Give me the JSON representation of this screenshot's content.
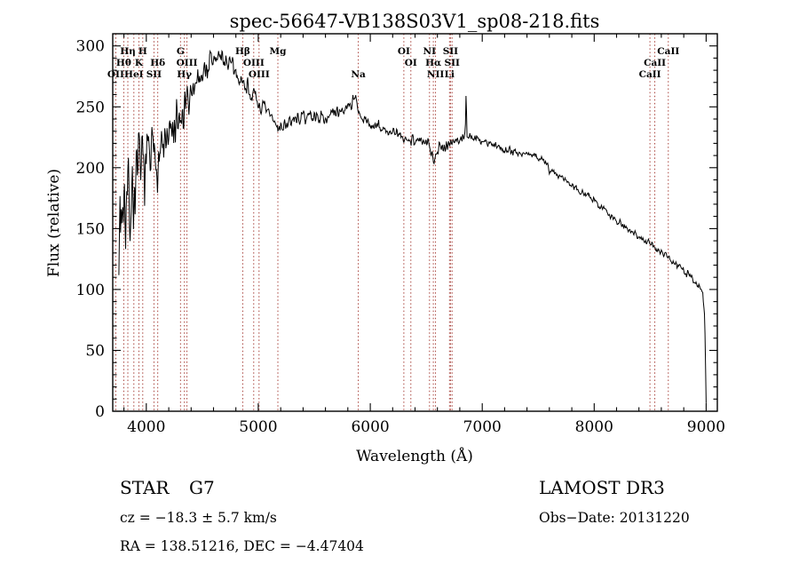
{
  "chart_data": {
    "type": "line",
    "title": "spec-56647-VB138S03V1_sp08-218.fits",
    "xlabel": "Wavelength (Å)",
    "ylabel": "Flux (relative)",
    "x_range": [
      3700,
      9100
    ],
    "y_range": [
      0,
      310
    ],
    "x_ticks": [
      4000,
      5000,
      6000,
      7000,
      8000,
      9000
    ],
    "y_ticks": [
      0,
      50,
      100,
      150,
      200,
      250,
      300
    ],
    "x_minor_step": 200,
    "y_minor_step": 10,
    "line_color": "#000000",
    "feature_line_color": "#a03028",
    "axis_color": "#000000",
    "noise_seed": 7,
    "spectrum_envelope": [
      [
        3755,
        150,
        75
      ],
      [
        3790,
        175,
        68
      ],
      [
        3850,
        170,
        62
      ],
      [
        3900,
        185,
        55
      ],
      [
        3950,
        198,
        50
      ],
      [
        4000,
        205,
        45
      ],
      [
        4050,
        207,
        42
      ],
      [
        4100,
        212,
        40
      ],
      [
        4150,
        216,
        36
      ],
      [
        4200,
        222,
        35
      ],
      [
        4250,
        230,
        33
      ],
      [
        4300,
        234,
        32
      ],
      [
        4350,
        246,
        30
      ],
      [
        4400,
        264,
        26
      ],
      [
        4450,
        272,
        22
      ],
      [
        4500,
        278,
        20
      ],
      [
        4550,
        283,
        19
      ],
      [
        4600,
        288,
        18
      ],
      [
        4650,
        291,
        18
      ],
      [
        4700,
        289,
        17
      ],
      [
        4750,
        283,
        16
      ],
      [
        4800,
        278,
        15
      ],
      [
        4861,
        269,
        14
      ],
      [
        4900,
        268,
        13
      ],
      [
        4950,
        259,
        12
      ],
      [
        5000,
        252,
        12
      ],
      [
        5050,
        248,
        11
      ],
      [
        5100,
        243,
        10
      ],
      [
        5175,
        233,
        10
      ],
      [
        5250,
        236,
        9
      ],
      [
        5350,
        240,
        9
      ],
      [
        5450,
        243,
        9
      ],
      [
        5550,
        241,
        9
      ],
      [
        5650,
        243,
        9
      ],
      [
        5750,
        247,
        9
      ],
      [
        5820,
        252,
        8
      ],
      [
        5868,
        258,
        8
      ],
      [
        5893,
        243,
        8
      ],
      [
        5950,
        238,
        8
      ],
      [
        6050,
        234,
        8
      ],
      [
        6150,
        230,
        8
      ],
      [
        6250,
        227,
        8
      ],
      [
        6300,
        223,
        8
      ],
      [
        6360,
        224,
        8
      ],
      [
        6450,
        222,
        9
      ],
      [
        6520,
        218,
        9
      ],
      [
        6563,
        209,
        9
      ],
      [
        6620,
        217,
        8
      ],
      [
        6700,
        220,
        8
      ],
      [
        6760,
        222,
        7
      ],
      [
        6820,
        224,
        7
      ],
      [
        6848,
        228,
        6
      ],
      [
        6856,
        266,
        4
      ],
      [
        6864,
        226,
        6
      ],
      [
        6950,
        223,
        6
      ],
      [
        7050,
        221,
        6
      ],
      [
        7150,
        217,
        6
      ],
      [
        7250,
        214,
        6
      ],
      [
        7350,
        212,
        6
      ],
      [
        7450,
        210,
        6
      ],
      [
        7550,
        207,
        6
      ],
      [
        7600,
        197,
        6
      ],
      [
        7650,
        196,
        5
      ],
      [
        7750,
        190,
        5
      ],
      [
        7850,
        183,
        5
      ],
      [
        7950,
        176,
        5
      ],
      [
        8050,
        169,
        5
      ],
      [
        8150,
        161,
        5
      ],
      [
        8250,
        153,
        6
      ],
      [
        8350,
        147,
        5
      ],
      [
        8450,
        141,
        5
      ],
      [
        8550,
        134,
        5
      ],
      [
        8650,
        127,
        5
      ],
      [
        8750,
        119,
        5
      ],
      [
        8850,
        111,
        6
      ],
      [
        8930,
        104,
        6
      ],
      [
        8970,
        99,
        5
      ],
      [
        8988,
        70,
        10
      ],
      [
        9000,
        6,
        4
      ]
    ],
    "features": [
      {
        "label": "OII",
        "wavelength": 3727,
        "row": 3
      },
      {
        "label": "Hθ",
        "wavelength": 3798,
        "row": 2
      },
      {
        "label": "Hη",
        "wavelength": 3835,
        "row": 1
      },
      {
        "label": "HeI",
        "wavelength": 3889,
        "row": 3
      },
      {
        "label": "K",
        "wavelength": 3933,
        "row": 2
      },
      {
        "label": "H",
        "wavelength": 3968,
        "row": 1
      },
      {
        "label": "SII",
        "wavelength": 4068,
        "row": 3
      },
      {
        "label": "Hδ",
        "wavelength": 4102,
        "row": 2
      },
      {
        "label": "G",
        "wavelength": 4305,
        "row": 1
      },
      {
        "label": "Hγ",
        "wavelength": 4340,
        "row": 3
      },
      {
        "label": "OIII",
        "wavelength": 4363,
        "row": 2
      },
      {
        "label": "Hβ",
        "wavelength": 4861,
        "row": 1
      },
      {
        "label": "OIII",
        "wavelength": 4959,
        "row": 2
      },
      {
        "label": "OIII",
        "wavelength": 5007,
        "row": 3
      },
      {
        "label": "Mg",
        "wavelength": 5175,
        "row": 1
      },
      {
        "label": "Na",
        "wavelength": 5893,
        "row": 3
      },
      {
        "label": "OI",
        "wavelength": 6300,
        "row": 1
      },
      {
        "label": "OI",
        "wavelength": 6363,
        "row": 2
      },
      {
        "label": "NI",
        "wavelength": 6529,
        "row": 1
      },
      {
        "label": "Hα",
        "wavelength": 6563,
        "row": 2
      },
      {
        "label": "NII",
        "wavelength": 6583,
        "row": 3
      },
      {
        "label": "Li",
        "wavelength": 6708,
        "row": 3
      },
      {
        "label": "SII",
        "wavelength": 6716,
        "row": 1
      },
      {
        "label": "SII",
        "wavelength": 6731,
        "row": 2
      },
      {
        "label": "CaII",
        "wavelength": 8498,
        "row": 3
      },
      {
        "label": "CaII",
        "wavelength": 8542,
        "row": 2
      },
      {
        "label": "CaII",
        "wavelength": 8662,
        "row": 1
      }
    ]
  },
  "footer": {
    "object_type": "STAR",
    "subclass": "G7",
    "survey": "LAMOST DR3",
    "cz": "cz = −18.3 ± 5.7 km/s",
    "obs_date": "Obs−Date: 20131220",
    "coords": "RA = 138.51216, DEC =  −4.47404"
  }
}
